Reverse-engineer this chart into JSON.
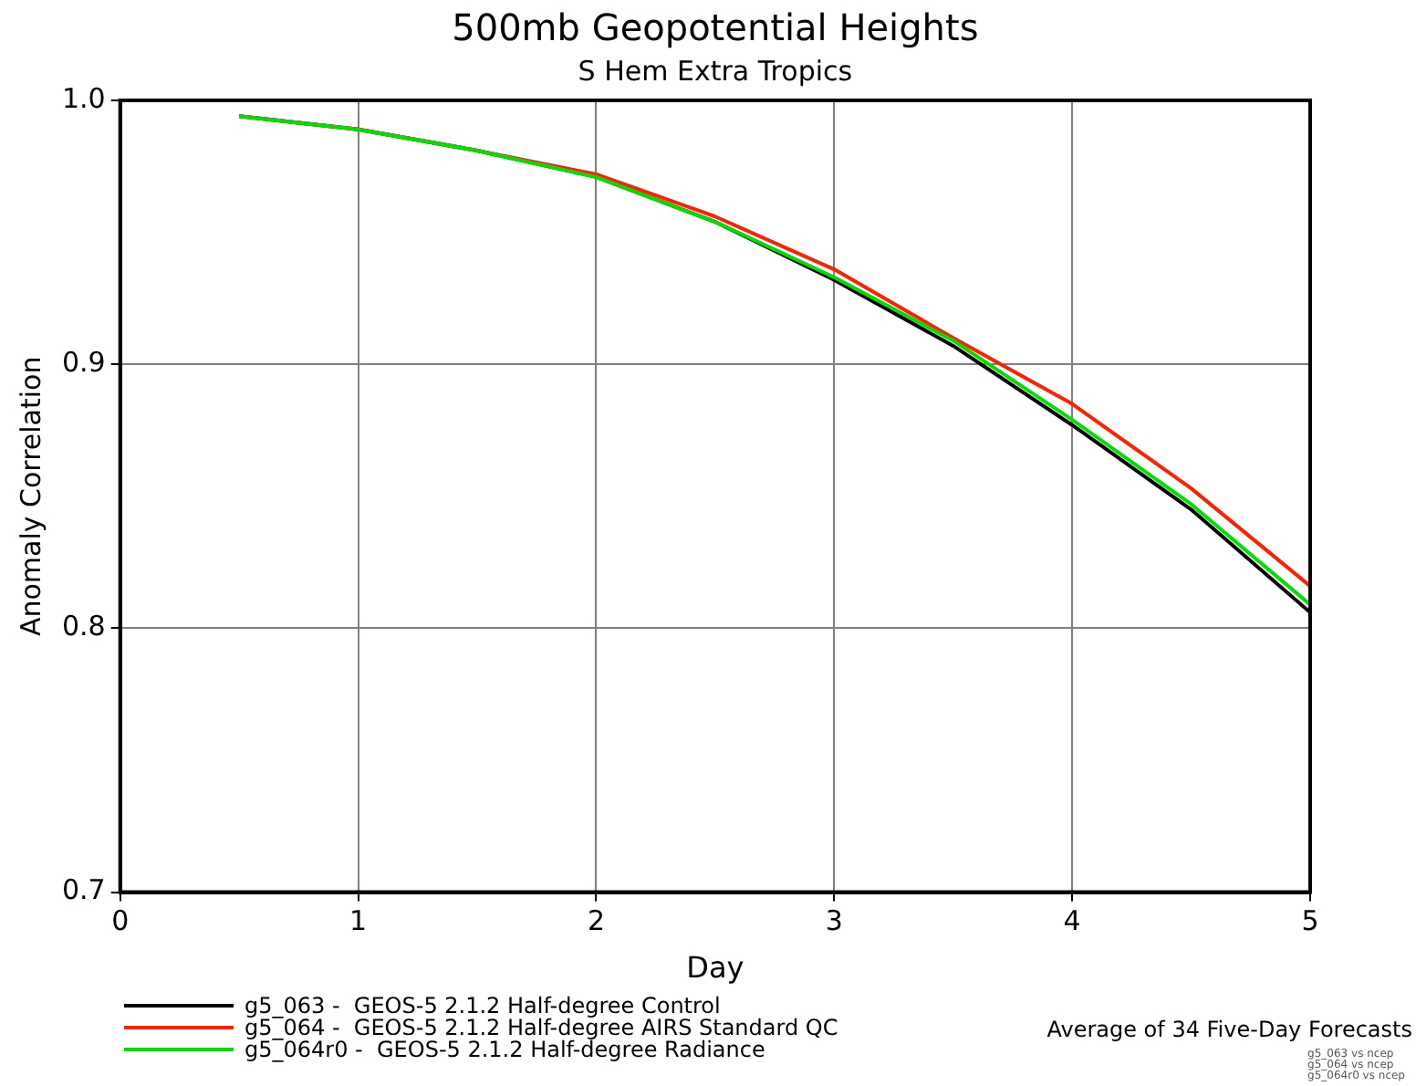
{
  "chart_data": {
    "type": "line",
    "title": "500mb Geopotential Heights",
    "subtitle": "S Hem Extra Tropics",
    "xlabel": "Day",
    "ylabel": "Anomaly Correlation",
    "x": [
      0.5,
      1,
      1.5,
      2,
      2.5,
      3,
      3.5,
      4,
      4.5,
      5
    ],
    "series": [
      {
        "name": "g5_063 -  GEOS-5 2.1.2 Half-degree Control",
        "color": "#000000",
        "values": [
          0.994,
          0.989,
          0.981,
          0.971,
          0.954,
          0.932,
          0.907,
          0.877,
          0.845,
          0.806
        ]
      },
      {
        "name": "g5_064 -  GEOS-5 2.1.2 Half-degree AIRS Standard QC",
        "color": "#ff2000",
        "values": [
          0.994,
          0.989,
          0.981,
          0.972,
          0.956,
          0.936,
          0.91,
          0.885,
          0.853,
          0.816
        ]
      },
      {
        "name": "g5_064r0 -  GEOS-5 2.1.2 Half-degree Radiance",
        "color": "#00e000",
        "values": [
          0.994,
          0.989,
          0.981,
          0.971,
          0.954,
          0.933,
          0.909,
          0.879,
          0.847,
          0.809
        ]
      }
    ],
    "xlim": [
      0,
      5
    ],
    "xticks": [
      0,
      1,
      2,
      3,
      4,
      5
    ],
    "ylim": [
      0.7,
      1.0
    ],
    "yticks": [
      {
        "value": 0.7,
        "label": "0.7"
      },
      {
        "value": 0.8,
        "label": "0.8"
      },
      {
        "value": 0.9,
        "label": "0.9"
      },
      {
        "value": 1.0,
        "label": "1.0"
      }
    ],
    "grid": true,
    "legend": "bottom left",
    "marker": "none",
    "line_style": "solid",
    "annotations": [
      "Average of 34 Five-Day Forecasts",
      "g5_063 vs ncep",
      "g5_064 vs ncep",
      "g5_064r0 vs ncep"
    ]
  }
}
